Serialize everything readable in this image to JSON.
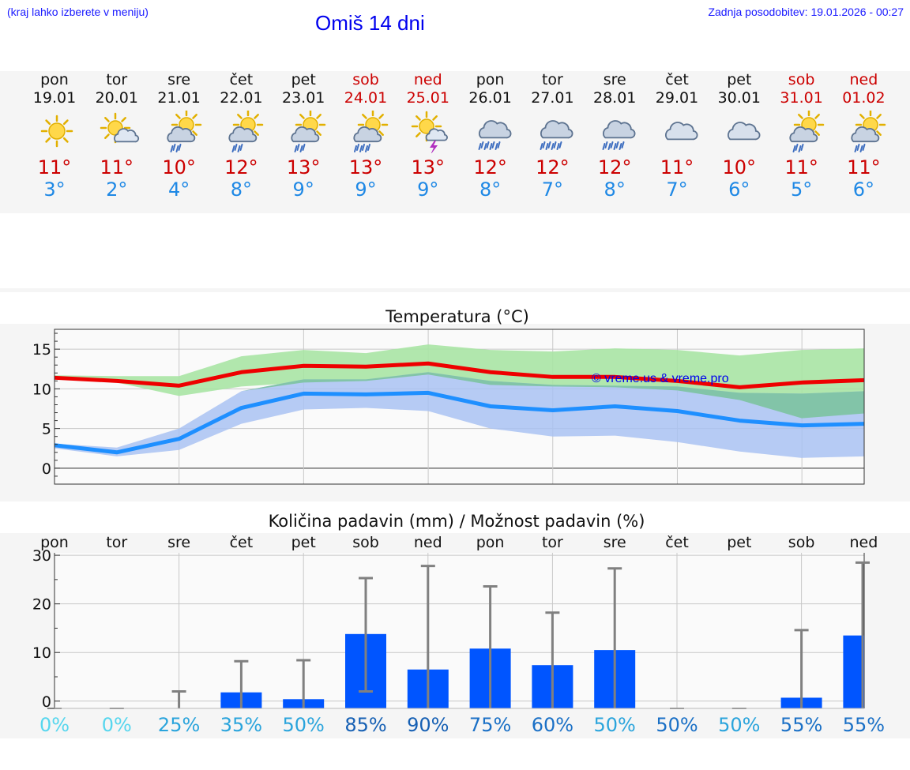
{
  "header": {
    "location_note": "(kraj lahko izberete v meniju)",
    "title": "Omiš 14 dni",
    "updated": "Zadnja posodobitev: 19.01.2026 - 00:27"
  },
  "days": [
    {
      "name": "pon",
      "date": "19.01",
      "weekend": false,
      "icon": "sunny-icon",
      "max": "11°",
      "min": "3°"
    },
    {
      "name": "tor",
      "date": "20.01",
      "weekend": false,
      "icon": "sun-cloud-icon",
      "max": "11°",
      "min": "2°"
    },
    {
      "name": "sre",
      "date": "21.01",
      "weekend": false,
      "icon": "sun-rain-cloud-icon",
      "max": "10°",
      "min": "4°"
    },
    {
      "name": "čet",
      "date": "22.01",
      "weekend": false,
      "icon": "sun-rain-cloud-icon",
      "max": "12°",
      "min": "8°"
    },
    {
      "name": "pet",
      "date": "23.01",
      "weekend": false,
      "icon": "sun-rain-cloud-icon",
      "max": "13°",
      "min": "9°"
    },
    {
      "name": "sob",
      "date": "24.01",
      "weekend": true,
      "icon": "sun-heavy-rain-icon",
      "max": "13°",
      "min": "9°"
    },
    {
      "name": "ned",
      "date": "25.01",
      "weekend": true,
      "icon": "sun-thunder-icon",
      "max": "13°",
      "min": "9°"
    },
    {
      "name": "pon",
      "date": "26.01",
      "weekend": false,
      "icon": "heavy-rain-cloud-icon",
      "max": "12°",
      "min": "8°"
    },
    {
      "name": "tor",
      "date": "27.01",
      "weekend": false,
      "icon": "heavy-rain-cloud-icon",
      "max": "12°",
      "min": "7°"
    },
    {
      "name": "sre",
      "date": "28.01",
      "weekend": false,
      "icon": "heavy-rain-cloud-icon",
      "max": "12°",
      "min": "8°"
    },
    {
      "name": "čet",
      "date": "29.01",
      "weekend": false,
      "icon": "cloud-icon",
      "max": "11°",
      "min": "7°"
    },
    {
      "name": "pet",
      "date": "30.01",
      "weekend": false,
      "icon": "cloud-icon",
      "max": "10°",
      "min": "6°"
    },
    {
      "name": "sob",
      "date": "31.01",
      "weekend": true,
      "icon": "sun-rain-cloud-icon",
      "max": "11°",
      "min": "5°"
    },
    {
      "name": "ned",
      "date": "01.02",
      "weekend": true,
      "icon": "sun-rain-cloud-icon",
      "max": "11°",
      "min": "6°"
    }
  ],
  "colors": {
    "max_line": "#ee0000",
    "min_line": "#1e8fff",
    "max_band": "#a8e4a4",
    "min_band": "#a9c2f2",
    "overlap_band": "#82c4a8",
    "bar": "#0055ff",
    "errbar": "#808080",
    "title": "#0000ee",
    "weekend": "#cc0000"
  },
  "chart_data": [
    {
      "type": "line",
      "title": "Temperatura (°C)",
      "watermark": "© vreme.us & vreme.pro",
      "ylim": [
        -2,
        17.5
      ],
      "yticks": [
        0,
        5,
        10,
        15
      ],
      "x": [
        0,
        1,
        2,
        3,
        4,
        5,
        6,
        7,
        8,
        9,
        10,
        11,
        12,
        13
      ],
      "series": [
        {
          "name": "max",
          "values": [
            11.4,
            11,
            10.4,
            12.1,
            12.9,
            12.8,
            13.2,
            12.1,
            11.5,
            11.5,
            11,
            10.2,
            10.8,
            11.1
          ],
          "band_low": [
            11.3,
            10.8,
            9.1,
            10.3,
            10.8,
            11,
            11.8,
            10.5,
            10.3,
            10.2,
            9.8,
            8.6,
            6.3,
            6.9
          ],
          "band_high": [
            11.7,
            11.6,
            11.6,
            14.1,
            14.9,
            14.5,
            15.6,
            14.9,
            14.7,
            15.1,
            14.9,
            14.2,
            14.9,
            15.1
          ]
        },
        {
          "name": "min",
          "values": [
            2.9,
            2,
            3.7,
            7.6,
            9.4,
            9.3,
            9.5,
            7.8,
            7.3,
            7.8,
            7.2,
            6,
            5.4,
            5.6
          ],
          "band_low": [
            2.5,
            1.5,
            2.3,
            5.6,
            7.4,
            7.6,
            7.2,
            5,
            4,
            4.1,
            3.3,
            2.1,
            1.3,
            1.5
          ],
          "band_high": [
            3.1,
            2.6,
            5,
            9.7,
            11.2,
            11.2,
            12.1,
            11,
            10.5,
            10.4,
            10.3,
            9.5,
            9.4,
            9.7
          ]
        }
      ]
    },
    {
      "type": "bar",
      "title": "Količina padavin (mm) / Možnost padavin (%)",
      "ylim": [
        -1.5,
        30.5
      ],
      "yticks": [
        0,
        10,
        20,
        30
      ],
      "ytick_labels": [
        "0",
        "10",
        "20",
        "30"
      ],
      "categories": [
        "pon",
        "tor",
        "sre",
        "čet",
        "pet",
        "sob",
        "ned",
        "pon",
        "tor",
        "sre",
        "čet",
        "pet",
        "sob",
        "ned"
      ],
      "values": [
        0,
        0,
        0,
        1.8,
        0.4,
        13.8,
        6.5,
        10.8,
        7.4,
        10.5,
        0,
        0,
        0.7,
        13.5
      ],
      "err_low": [
        0,
        0,
        0,
        0,
        0,
        2,
        0,
        0,
        0,
        0,
        0,
        0,
        0,
        0
      ],
      "err_high": [
        0,
        0,
        2,
        8.2,
        8.4,
        25.3,
        27.8,
        23.6,
        18.2,
        27.3,
        0,
        0,
        14.6,
        28.5
      ],
      "probability": [
        "0%",
        "0%",
        "25%",
        "35%",
        "50%",
        "85%",
        "90%",
        "75%",
        "60%",
        "50%",
        "50%",
        "50%",
        "55%",
        "55%"
      ],
      "probability_colors": [
        "#56d6ee",
        "#56d6ee",
        "#2aa4dc",
        "#2aa4dc",
        "#2aa4dc",
        "#1660b4",
        "#1660b4",
        "#1a70c6",
        "#1a70c6",
        "#2aa4dc",
        "#1a70c6",
        "#2aa4dc",
        "#1a70c6",
        "#1a70c6"
      ]
    }
  ]
}
